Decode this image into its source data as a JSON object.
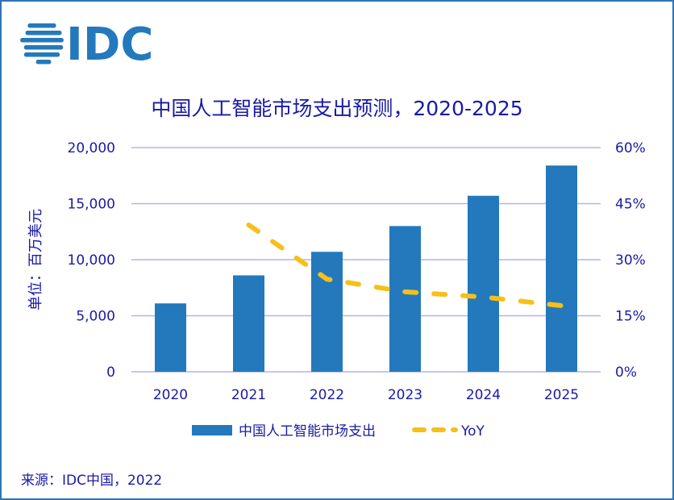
{
  "logo": {
    "text": "IDC",
    "color": "#2479bd"
  },
  "source": "来源：IDC中国，2022",
  "colors": {
    "bar": "#2479bd",
    "line": "#f5c01a",
    "grid": "#b4b4f0",
    "text": "#1a1aa6",
    "frame": "#2e75b6"
  },
  "chart_data": {
    "type": "bar+line",
    "title": "中国人工智能市场支出预测，2020-2025",
    "ylabel": "单位：百万美元",
    "categories": [
      "2020",
      "2021",
      "2022",
      "2023",
      "2024",
      "2025"
    ],
    "series": [
      {
        "name": "中国人工智能市场支出",
        "type": "bar",
        "axis": "left",
        "values": [
          6100,
          8600,
          10700,
          13000,
          15700,
          18400
        ]
      },
      {
        "name": "YoY",
        "type": "line",
        "style": "dashed",
        "axis": "right",
        "values": [
          null,
          39.3,
          24.8,
          21.4,
          20.0,
          17.7
        ]
      }
    ],
    "y_left": {
      "range": [
        0,
        20000
      ],
      "ticks": [
        "0",
        "5,000",
        "10,000",
        "15,000",
        "20,000"
      ]
    },
    "y_right": {
      "range": [
        0,
        60
      ],
      "unit": "%",
      "ticks": [
        "0%",
        "15%",
        "30%",
        "45%",
        "60%"
      ]
    },
    "grid": true,
    "legend": "bottom"
  }
}
